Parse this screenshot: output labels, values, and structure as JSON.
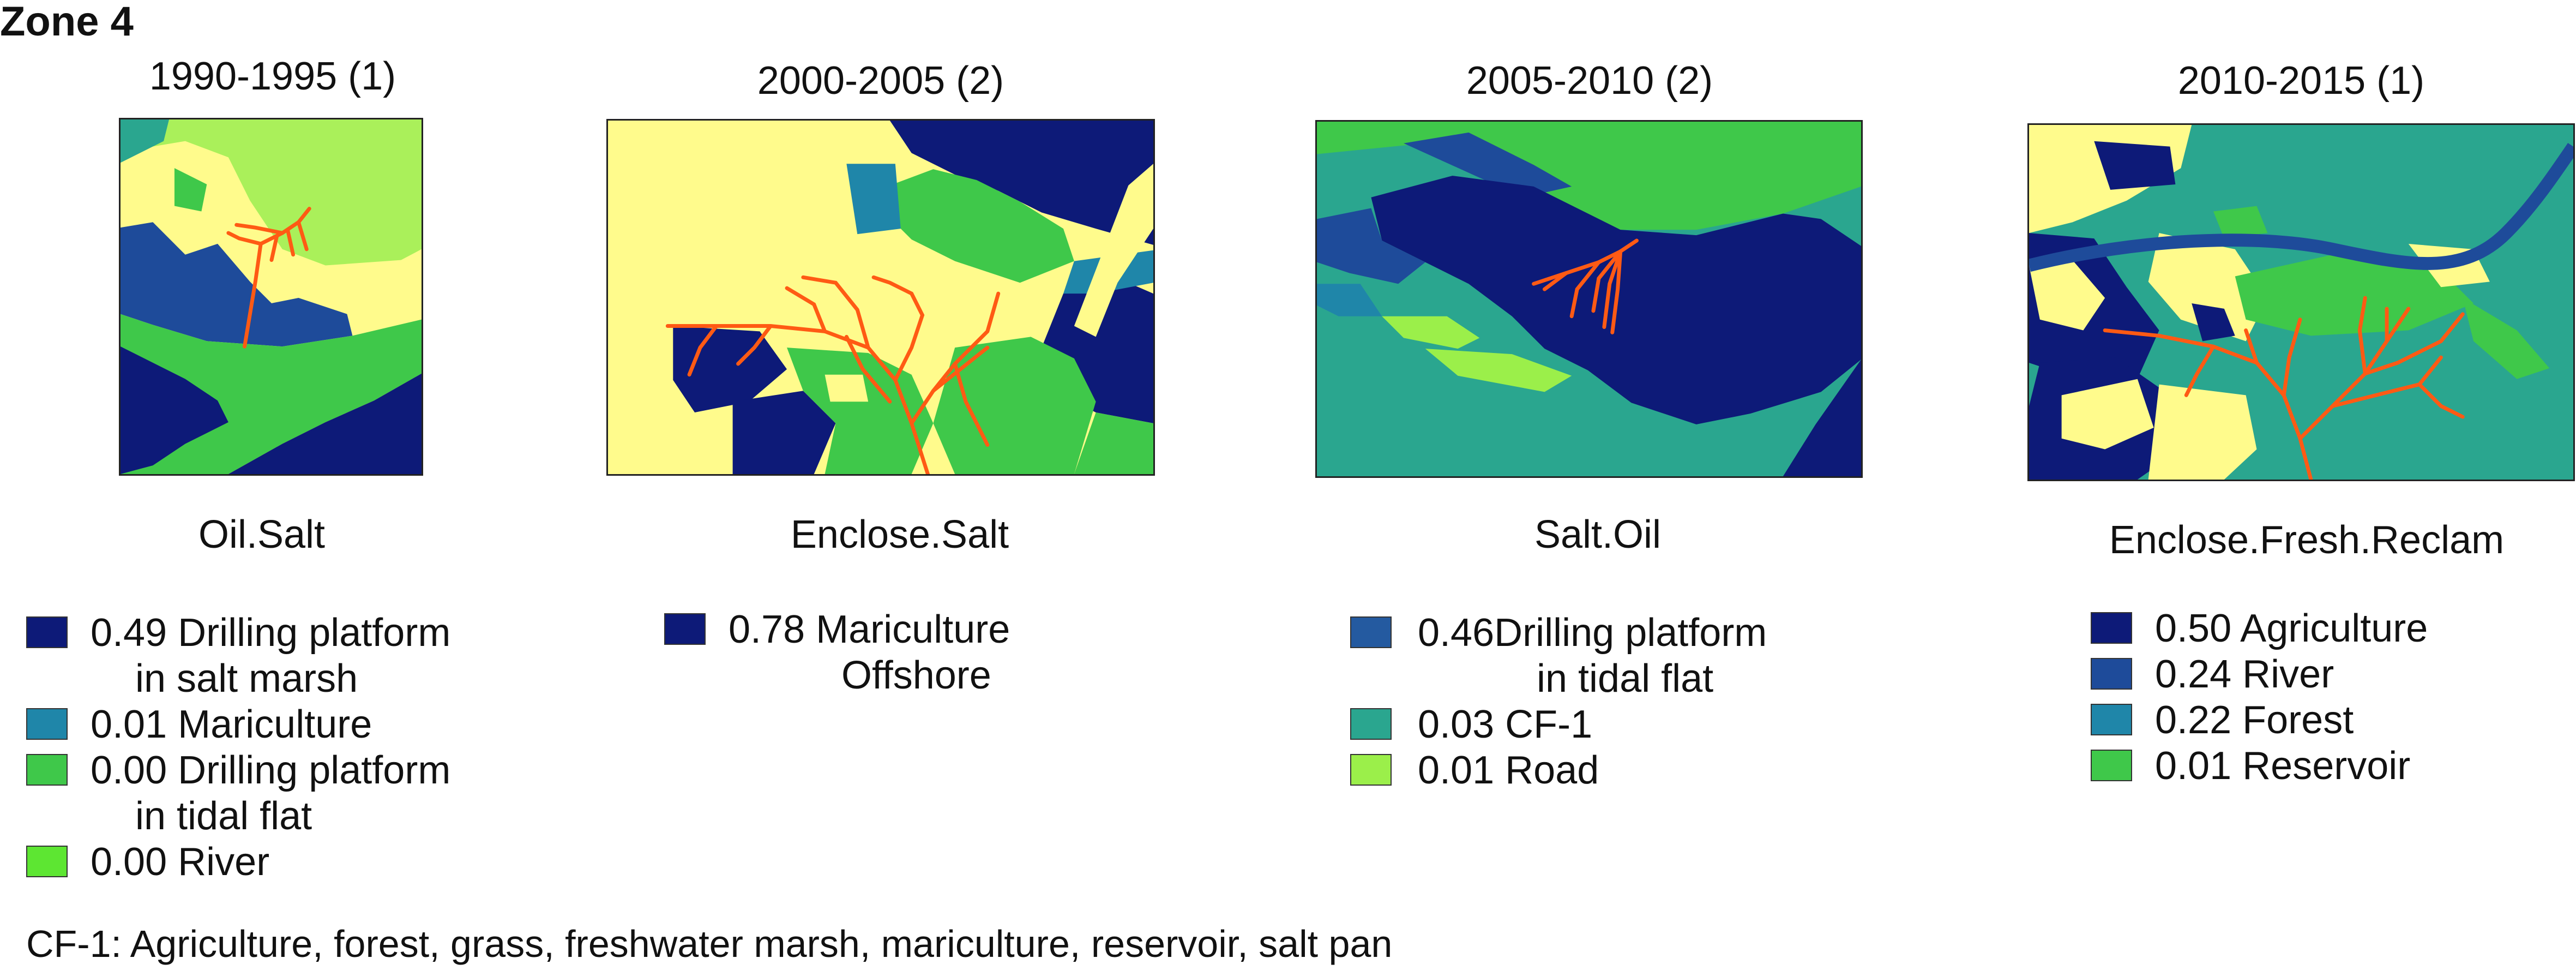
{
  "zone_title": "Zone 4",
  "panels": [
    {
      "period": "1990-1995 (1)",
      "process": "Oil.Salt",
      "legend": [
        {
          "value": "0.49",
          "label": "Drilling platform",
          "label_cont": "in salt marsh",
          "color": "#0d1a78"
        },
        {
          "value": "0.01",
          "label": "Mariculture",
          "label_cont": "",
          "color": "#1f86a9"
        },
        {
          "value": "0.00",
          "label": "Drilling platform",
          "label_cont": "in tidal flat",
          "color": "#3fc84a"
        },
        {
          "value": "0.00",
          "label": "River",
          "label_cont": "",
          "color": "#5de632"
        }
      ]
    },
    {
      "period": "2000-2005 (2)",
      "process": "Enclose.Salt",
      "legend": [
        {
          "value": "0.78",
          "label": "Mariculture",
          "label_cont": "Offshore",
          "color": "#0d1a78"
        }
      ]
    },
    {
      "period": "2005-2010 (2)",
      "process": "Salt.Oil",
      "legend": [
        {
          "value": "0.46",
          "label": "Drilling platform",
          "label_cont": "in tidal flat",
          "color": "#245aa0"
        },
        {
          "value": "0.03",
          "label": "CF-1",
          "label_cont": "",
          "color": "#2aa68f"
        },
        {
          "value": "0.01",
          "label": "Road",
          "label_cont": "",
          "color": "#9bef4a"
        }
      ]
    },
    {
      "period": "2010-2015 (1)",
      "process": "Enclose.Fresh.Reclam",
      "legend": [
        {
          "value": "0.50",
          "label": "Agriculture",
          "label_cont": "",
          "color": "#0d1a78"
        },
        {
          "value": "0.24",
          "label": "River",
          "label_cont": "",
          "color": "#1e4b9a"
        },
        {
          "value": "0.22",
          "label": "Forest",
          "label_cont": "",
          "color": "#1f86a9"
        },
        {
          "value": "0.01",
          "label": "Reservoir",
          "label_cont": "",
          "color": "#3fc84a"
        }
      ]
    }
  ],
  "footnote": "CF-1: Agriculture, forest, grass, freshwater marsh, mariculture, reservoir, salt pan",
  "map_colors": {
    "navy": "#0d1a78",
    "blue": "#1e4b9a",
    "teal": "#1f86a9",
    "seagreen": "#2aa68f",
    "green": "#3fc84a",
    "lightgreen": "#aaf05a",
    "yellow": "#fffb8c",
    "stream": "#ff5a14"
  }
}
